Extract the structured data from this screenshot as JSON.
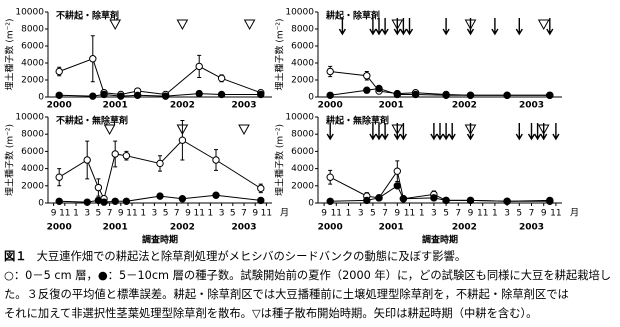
{
  "chart_data": [
    {
      "type": "line",
      "title": "不耕起・除草剤",
      "ylabel": "埋土種子数 (m⁻²)",
      "xlim": [
        -1,
        39
      ],
      "ylim": [
        0,
        10000
      ],
      "yticks": [
        0,
        2000,
        4000,
        6000,
        8000,
        10000
      ],
      "year_ticks": [
        {
          "value": 1,
          "label": "2000"
        },
        {
          "value": 11,
          "label": "2001"
        },
        {
          "value": 23,
          "label": "2002"
        },
        {
          "value": 34,
          "label": "2003"
        }
      ],
      "x": [
        1,
        7,
        9,
        12,
        15,
        20,
        26,
        30,
        37
      ],
      "series": [
        {
          "marker": "open",
          "color": "#000000",
          "values": [
            3000,
            4500,
            500,
            300,
            700,
            300,
            3600,
            2200,
            500
          ],
          "errors": [
            500,
            2700,
            300,
            200,
            300,
            200,
            1300,
            400,
            300
          ]
        },
        {
          "marker": "filled",
          "color": "#000000",
          "values": [
            200,
            100,
            300,
            100,
            200,
            100,
            400,
            300,
            300
          ]
        }
      ],
      "dispersal": [
        11,
        23,
        35
      ]
    },
    {
      "type": "line",
      "title": "耕起・除草剤",
      "ylabel": "埋土種子数 (m⁻²)",
      "xlim": [
        -1,
        39
      ],
      "ylim": [
        0,
        10000
      ],
      "yticks": [
        0,
        2000,
        4000,
        6000,
        8000,
        10000
      ],
      "year_ticks": [
        {
          "value": 1,
          "label": "2000"
        },
        {
          "value": 11,
          "label": "2001"
        },
        {
          "value": 23,
          "label": "2002"
        },
        {
          "value": 34,
          "label": "2003"
        }
      ],
      "x": [
        1,
        7,
        9,
        12,
        15,
        20,
        24,
        30,
        37
      ],
      "series": [
        {
          "marker": "open",
          "color": "#000000",
          "values": [
            3000,
            2500,
            700,
            400,
            500,
            300,
            200,
            200,
            200
          ],
          "errors": [
            600,
            500,
            300,
            200,
            200,
            100,
            100,
            100,
            100
          ]
        },
        {
          "marker": "filled",
          "color": "#000000",
          "values": [
            200,
            800,
            1000,
            300,
            300,
            200,
            200,
            200,
            200
          ]
        }
      ],
      "dispersal": [
        12,
        24,
        36
      ],
      "tillage": [
        3,
        8,
        9,
        10,
        12,
        13,
        14,
        20,
        24,
        28,
        32,
        37
      ]
    },
    {
      "type": "line",
      "title": "不耕起・無除草剤",
      "ylabel": "埋土種子数 (m⁻²)",
      "xlim": [
        -1,
        39
      ],
      "ylim": [
        0,
        10000
      ],
      "yticks": [
        0,
        2000,
        4000,
        6000,
        8000,
        10000
      ],
      "xticks": [
        {
          "value": 0,
          "label": "9"
        },
        {
          "value": 2,
          "label": "11"
        },
        {
          "value": 4,
          "label": "1"
        },
        {
          "value": 6,
          "label": "3"
        },
        {
          "value": 8,
          "label": "5"
        },
        {
          "value": 10,
          "label": "7"
        },
        {
          "value": 12,
          "label": "9"
        },
        {
          "value": 14,
          "label": "11"
        },
        {
          "value": 16,
          "label": "1"
        },
        {
          "value": 18,
          "label": "3"
        },
        {
          "value": 20,
          "label": "5"
        },
        {
          "value": 22,
          "label": "7"
        },
        {
          "value": 24,
          "label": "9"
        },
        {
          "value": 26,
          "label": "11"
        },
        {
          "value": 28,
          "label": "1"
        },
        {
          "value": 30,
          "label": "3"
        },
        {
          "value": 32,
          "label": "5"
        },
        {
          "value": 34,
          "label": "7"
        },
        {
          "value": 36,
          "label": "9"
        },
        {
          "value": 38,
          "label": "11"
        }
      ],
      "x_unit": "月",
      "xlabel": "調査時期",
      "year_ticks": [
        {
          "value": 1,
          "label": "2000"
        },
        {
          "value": 11,
          "label": "2001"
        },
        {
          "value": 23,
          "label": "2002"
        },
        {
          "value": 34,
          "label": "2003"
        }
      ],
      "x": [
        1,
        6,
        8,
        9,
        11,
        13,
        19,
        23,
        29,
        37
      ],
      "series": [
        {
          "marker": "open",
          "color": "#000000",
          "values": [
            3000,
            5000,
            1800,
            500,
            5700,
            5500,
            4600,
            7300,
            5000,
            1700
          ],
          "errors": [
            1000,
            2200,
            1000,
            300,
            1500,
            500,
            900,
            2300,
            1200,
            500
          ]
        },
        {
          "marker": "filled",
          "color": "#000000",
          "values": [
            200,
            100,
            300,
            100,
            200,
            200,
            800,
            500,
            900,
            300
          ]
        }
      ],
      "dispersal": [
        10,
        23,
        34
      ]
    },
    {
      "type": "line",
      "title": "耕起・無除草剤",
      "ylabel": "埋土種子数 (m⁻²)",
      "xlim": [
        -1,
        39
      ],
      "ylim": [
        0,
        10000
      ],
      "yticks": [
        0,
        2000,
        4000,
        6000,
        8000,
        10000
      ],
      "xticks": [
        {
          "value": 0,
          "label": "9"
        },
        {
          "value": 2,
          "label": "11"
        },
        {
          "value": 4,
          "label": "1"
        },
        {
          "value": 6,
          "label": "3"
        },
        {
          "value": 8,
          "label": "5"
        },
        {
          "value": 10,
          "label": "7"
        },
        {
          "value": 12,
          "label": "9"
        },
        {
          "value": 14,
          "label": "11"
        },
        {
          "value": 16,
          "label": "1"
        },
        {
          "value": 18,
          "label": "3"
        },
        {
          "value": 20,
          "label": "5"
        },
        {
          "value": 22,
          "label": "7"
        },
        {
          "value": 24,
          "label": "9"
        },
        {
          "value": 26,
          "label": "11"
        },
        {
          "value": 28,
          "label": "1"
        },
        {
          "value": 30,
          "label": "3"
        },
        {
          "value": 32,
          "label": "5"
        },
        {
          "value": 34,
          "label": "7"
        },
        {
          "value": 36,
          "label": "9"
        },
        {
          "value": 38,
          "label": "11"
        }
      ],
      "x_unit": "月",
      "xlabel": "調査時期",
      "year_ticks": [
        {
          "value": 1,
          "label": "2000"
        },
        {
          "value": 11,
          "label": "2001"
        },
        {
          "value": 23,
          "label": "2002"
        },
        {
          "value": 34,
          "label": "2003"
        }
      ],
      "x": [
        1,
        7,
        9,
        12,
        13,
        18,
        20,
        24,
        30,
        37
      ],
      "series": [
        {
          "marker": "open",
          "color": "#000000",
          "values": [
            3000,
            800,
            600,
            3700,
            500,
            1000,
            300,
            300,
            200,
            200
          ],
          "errors": [
            800,
            400,
            300,
            1200,
            300,
            400,
            100,
            100,
            100,
            100
          ]
        },
        {
          "marker": "filled",
          "color": "#000000",
          "values": [
            200,
            300,
            600,
            2000,
            500,
            600,
            300,
            300,
            200,
            300
          ]
        }
      ],
      "dispersal": [
        12,
        24,
        36
      ],
      "tillage": [
        1,
        8,
        9,
        10,
        12,
        13,
        18,
        19,
        20,
        21,
        24,
        32,
        34,
        35,
        36,
        38
      ]
    }
  ],
  "caption": {
    "label": "図１",
    "title": "大豆連作畑での耕起法と除草剤処理がメヒシバのシードバンクの動態に及ぼす影響。",
    "lines": [
      "○：0－5 cm 層，●：5－10cm 層の種子数。試験開始前の夏作（2000 年）に，どの試験区も同様に大豆を耕起栽培し",
      "た。３反復の平均値と標準誤差。耕起・除草剤区では大豆播種前に土壌処理型除草剤を，不耕起・除草剤区では",
      "それに加えて非選択性茎葉処理型除草剤を散布。▽は種子散布開始時期。矢印は耕起時期（中耕を含む）。"
    ]
  }
}
